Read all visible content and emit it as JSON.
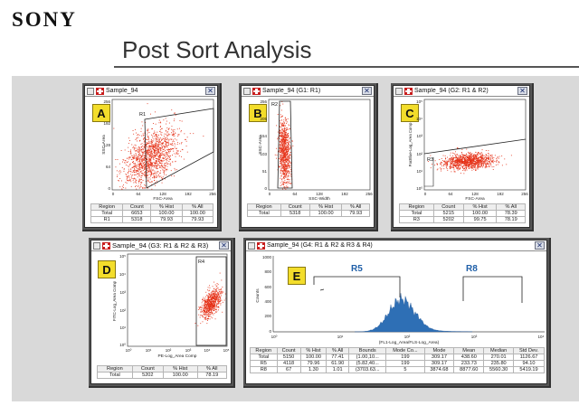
{
  "header": {
    "logo": "SONY",
    "title": "Post Sort Analysis"
  },
  "colors": {
    "dots": "#e53117",
    "histogram": "#2e6fb5",
    "badge": "#f3dd2b",
    "gate_label": "#1f5fa8"
  },
  "windows": [
    {
      "id": "A",
      "title": "Sample_94",
      "plot": {
        "type": "scatter",
        "xlabel": "FSC-Area",
        "ylabel": "SSC-Area",
        "xticks": [
          "0",
          "64",
          "128",
          "192",
          "256"
        ],
        "yticks": [
          "256",
          "192",
          "128",
          "64",
          "0"
        ],
        "gate": "R1"
      },
      "table": {
        "headers": [
          "Region",
          "Count",
          "% Hist",
          "% All"
        ],
        "rows": [
          [
            "Total",
            "6653",
            "100.00",
            "100.00"
          ],
          [
            "R1",
            "5318",
            "79.93",
            "79.93"
          ]
        ]
      }
    },
    {
      "id": "B",
      "title": "Sample_94 (G1: R1)",
      "plot": {
        "type": "scatter",
        "xlabel": "SSC-Width",
        "ylabel": "SSC-Area",
        "xticks": [
          "0",
          "64",
          "128",
          "192",
          "256"
        ],
        "yticks": [
          "256",
          "205",
          "154",
          "103",
          "51",
          "0"
        ],
        "gate": "R2"
      },
      "table": {
        "headers": [
          "Region",
          "Count",
          "% Hist",
          "% All"
        ],
        "rows": [
          [
            "Total",
            "5318",
            "100.00",
            "79.93"
          ]
        ]
      }
    },
    {
      "id": "C",
      "title": "Sample_94 (G2: R1 & R2)",
      "plot": {
        "type": "scatter",
        "xlabel": "FSC-Area",
        "ylabel": "PacBlue-Log_Area Comp",
        "xticks": [
          "0",
          "64",
          "128",
          "192",
          "256"
        ],
        "yticks": [
          "10⁵",
          "10⁴",
          "10³",
          "10²",
          "10¹",
          "10⁰"
        ],
        "gate": "R3"
      },
      "table": {
        "headers": [
          "Region",
          "Count",
          "% Hist",
          "% All"
        ],
        "rows": [
          [
            "Total",
            "5215",
            "100.00",
            "78.39"
          ],
          [
            "R3",
            "5202",
            "99.75",
            "78.19"
          ]
        ]
      }
    },
    {
      "id": "D",
      "title": "Sample_94 (G3: R1 & R2 & R3)",
      "plot": {
        "type": "scatter",
        "xlabel": "PE-Log_Area Comp",
        "ylabel": "FITC-Log_Area Comp",
        "xticks": [
          "10⁰",
          "10¹",
          "10²",
          "10³",
          "10⁴",
          "10⁵"
        ],
        "yticks": [
          "10⁵",
          "10⁴",
          "10³",
          "10²",
          "10¹",
          "10⁰"
        ],
        "gate": "R4"
      },
      "table": {
        "headers": [
          "Region",
          "Count",
          "% Hist",
          "% All"
        ],
        "rows": [
          [
            "Total",
            "5202",
            "100.00",
            "78.19"
          ]
        ]
      }
    },
    {
      "id": "E",
      "title": "Sample_94 (G4: R1 & R2 & R3 & R4)",
      "plot": {
        "type": "histogram",
        "xlabel": "(FL1-Log_Area/FLS-Log_Area)",
        "ylabel": "Counts",
        "xticks": [
          "10⁰",
          "10¹",
          "10²",
          "10³",
          "10⁴"
        ],
        "yticks": [
          "1000",
          "800",
          "600",
          "400",
          "200",
          "0"
        ]
      },
      "gates": [
        "R5",
        "R8"
      ],
      "table": {
        "headers": [
          "Region",
          "Count",
          "% Hist",
          "% All",
          "Bounds",
          "Mode Co...",
          "Mode",
          "Mean",
          "Median",
          "Std Dev."
        ],
        "rows": [
          [
            "Total",
            "5150",
            "100.00",
            "77.41",
            "(1.00,10...",
            "199",
            "309.17",
            "438.60",
            "270.01",
            "1126.67"
          ],
          [
            "R5",
            "4118",
            "79.96",
            "61.90",
            "(5.82,40...",
            "199",
            "309.17",
            "233.73",
            "235.80",
            "94.10"
          ],
          [
            "R8",
            "67",
            "1.30",
            "1.01",
            "(3703.63...",
            "5",
            "3874.68",
            "8877.60",
            "5560.30",
            "5419.19"
          ]
        ]
      }
    }
  ]
}
